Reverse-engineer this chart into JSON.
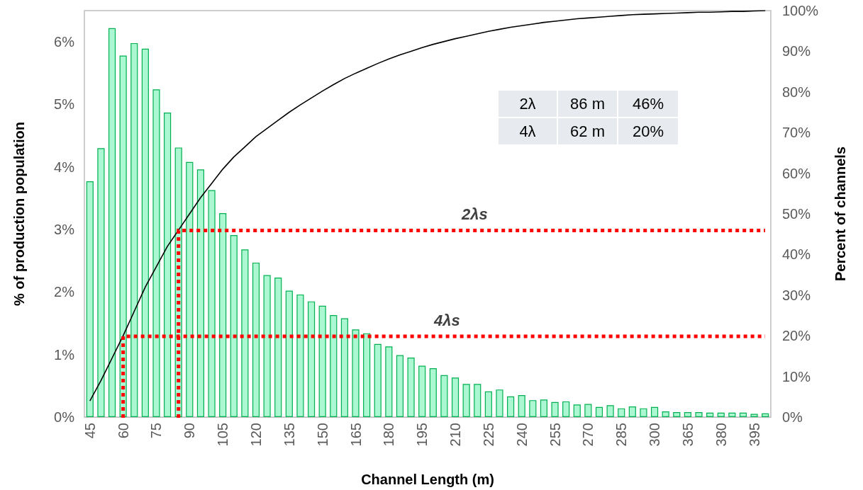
{
  "chart_data": {
    "type": "bar",
    "xlabel": "Channel Length (m)",
    "ylabel": "% of production population",
    "y2label": "Percent of channels",
    "categories": [
      "45",
      null,
      null,
      "60",
      null,
      null,
      "75",
      null,
      null,
      "90",
      null,
      null,
      "105",
      null,
      null,
      "120",
      null,
      null,
      "135",
      null,
      null,
      "150",
      null,
      null,
      "165",
      null,
      null,
      "180",
      null,
      null,
      "195",
      null,
      null,
      "210",
      null,
      null,
      "225",
      null,
      null,
      "240",
      null,
      null,
      "255",
      null,
      null,
      "270",
      null,
      null,
      "285",
      null,
      null,
      "300",
      null,
      null,
      "365",
      null,
      null,
      "380",
      null,
      null,
      "395",
      null
    ],
    "series": [
      {
        "color": "#aaf7d2",
        "values": [
          3.77,
          4.3,
          6.22,
          5.78,
          5.98,
          5.89,
          5.24,
          4.87,
          4.31,
          4.08,
          3.96,
          3.63,
          3.26,
          2.91,
          2.68,
          2.47,
          2.27,
          2.23,
          2.02,
          1.96,
          1.85,
          1.78,
          1.63,
          1.58,
          1.4,
          1.34,
          1.17,
          1.13,
          0.99,
          0.95,
          0.82,
          0.78,
          0.67,
          0.63,
          0.53,
          0.53,
          0.41,
          0.44,
          0.33,
          0.35,
          0.27,
          0.28,
          0.24,
          0.25,
          0.2,
          0.21,
          0.16,
          0.19,
          0.14,
          0.17,
          0.14,
          0.16,
          0.09,
          0.08,
          0.08,
          0.08,
          0.07,
          0.07,
          0.07,
          0.07,
          0.05,
          0.06
        ]
      },
      {
        "type": "line",
        "axis": "y2",
        "color": "#000000",
        "values": [
          4,
          9,
          14.5,
          20,
          26,
          32,
          37,
          42,
          46,
          50,
          54,
          57.5,
          61,
          64,
          66.5,
          69,
          71,
          73,
          75,
          76.8,
          78.5,
          80.2,
          81.8,
          83.3,
          84.6,
          85.8,
          87,
          88.1,
          89.1,
          90,
          90.9,
          91.7,
          92.4,
          93.1,
          93.7,
          94.3,
          94.9,
          95.4,
          95.9,
          96.3,
          96.7,
          97.1,
          97.4,
          97.7,
          98,
          98.2,
          98.4,
          98.6,
          98.8,
          99,
          99.1,
          99.2,
          99.3,
          99.4,
          99.5,
          99.6,
          99.6,
          99.7,
          99.8,
          99.8,
          99.9,
          100
        ]
      }
    ],
    "ylim": [
      0,
      6.5
    ],
    "yticks": [
      {
        "value": 0,
        "label": "0%"
      },
      {
        "value": 1,
        "label": "1%"
      },
      {
        "value": 2,
        "label": "2%"
      },
      {
        "value": 3,
        "label": "3%"
      },
      {
        "value": 4,
        "label": "4%"
      },
      {
        "value": 5,
        "label": "5%"
      },
      {
        "value": 6,
        "label": "6%"
      }
    ],
    "y2lim": [
      0,
      100
    ],
    "y2ticks": [
      {
        "value": 0,
        "label": "0%"
      },
      {
        "value": 10,
        "label": "10%"
      },
      {
        "value": 20,
        "label": "20%"
      },
      {
        "value": 30,
        "label": "30%"
      },
      {
        "value": 40,
        "label": "40%"
      },
      {
        "value": 50,
        "label": "50%"
      },
      {
        "value": 60,
        "label": "60%"
      },
      {
        "value": 70,
        "label": "70%"
      },
      {
        "value": 80,
        "label": "80%"
      },
      {
        "value": 90,
        "label": "90%"
      },
      {
        "value": 100,
        "label": "100%"
      }
    ],
    "ref_lines": [
      {
        "axis": "y2",
        "value": 46,
        "label": "2λs",
        "color": "#ff0000",
        "line_style": "dotted"
      },
      {
        "axis": "y2",
        "value": 20,
        "label": "4λs",
        "color": "#ff0000",
        "line_style": "dotted"
      }
    ],
    "annotations": [
      "2λ",
      "86 m",
      "46%",
      "4λ",
      "62 m",
      "20%"
    ],
    "grid": false,
    "marker": "none"
  }
}
